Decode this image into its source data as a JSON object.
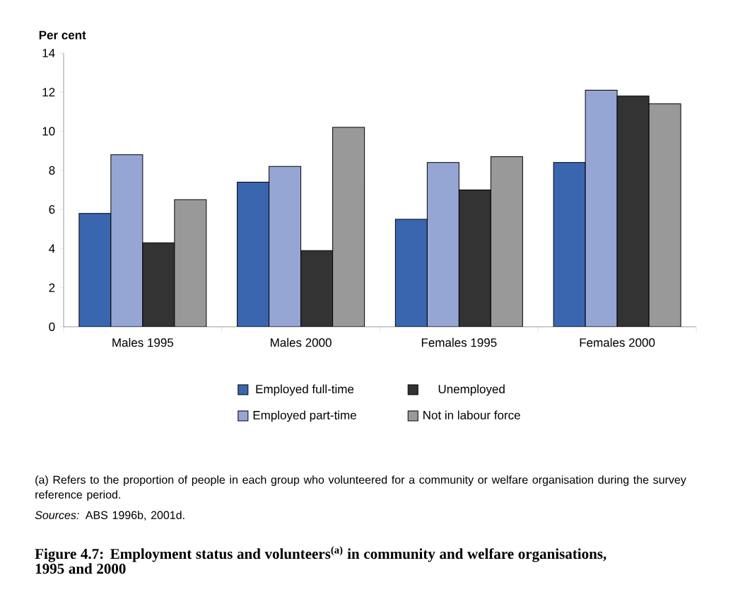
{
  "chart_data": {
    "type": "bar",
    "title": "Figure 4.7: Employment status and volunteers$^{(a)}$ in community and welfare organisations, 1995 and 2000",
    "ylabel": "Per cent",
    "categories": [
      "Males 1995",
      "Males 2000",
      "Females 1995",
      "Females 2000"
    ],
    "series": [
      {
        "name": "Employed full-time",
        "color": "#3a66b0",
        "values": [
          5.8,
          7.4,
          5.5,
          8.4
        ]
      },
      {
        "name": "Employed part-time",
        "color": "#96a6d4",
        "values": [
          8.8,
          8.2,
          8.4,
          12.1
        ]
      },
      {
        "name": "Unemployed",
        "color": "#333333",
        "values": [
          4.3,
          3.9,
          7.0,
          11.8
        ]
      },
      {
        "name": "Not in labour force",
        "color": "#999999",
        "values": [
          6.5,
          10.2,
          8.7,
          11.4
        ]
      }
    ],
    "ylim": [
      0,
      14
    ],
    "yticks": [
      0,
      2,
      4,
      6,
      8,
      10,
      12,
      14
    ],
    "grid": false,
    "legend": "bottom",
    "annotations": [
      "(a) Refers to the proportion of people in each group who volunteered for a community or welfare organisation during the survey reference period.",
      "*Sources:* ABS 1996b, 2001d."
    ]
  }
}
